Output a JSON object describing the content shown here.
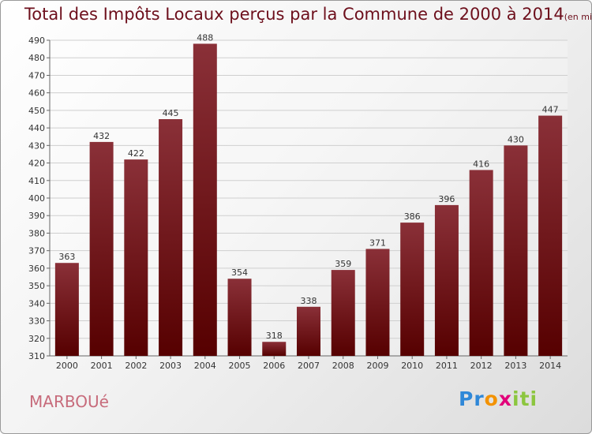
{
  "chart_data": {
    "type": "bar",
    "title": "Total des Impôts Locaux perçus par la Commune de 2000 à 2014",
    "subtitle": "(en milliers d'€)",
    "categories": [
      "2000",
      "2001",
      "2002",
      "2003",
      "2004",
      "2005",
      "2006",
      "2007",
      "2008",
      "2009",
      "2010",
      "2011",
      "2012",
      "2013",
      "2014"
    ],
    "values": [
      363,
      432,
      422,
      445,
      488,
      354,
      318,
      338,
      359,
      371,
      386,
      396,
      416,
      430,
      447
    ],
    "xlabel": "",
    "ylabel": "",
    "ylim": [
      310,
      490
    ],
    "ytick_step": 10,
    "grid": true,
    "bar_color_top": "#8a3038",
    "bar_color_bottom": "#560000"
  },
  "commune": "MARBOUé",
  "logo": {
    "letters": [
      "P",
      "r",
      "o",
      "x",
      "i",
      "t",
      "i"
    ],
    "colors": [
      "#2f88d8",
      "#2f88d8",
      "#f39200",
      "#e2007a",
      "#8cc63f",
      "#8cc63f",
      "#8cc63f"
    ]
  }
}
